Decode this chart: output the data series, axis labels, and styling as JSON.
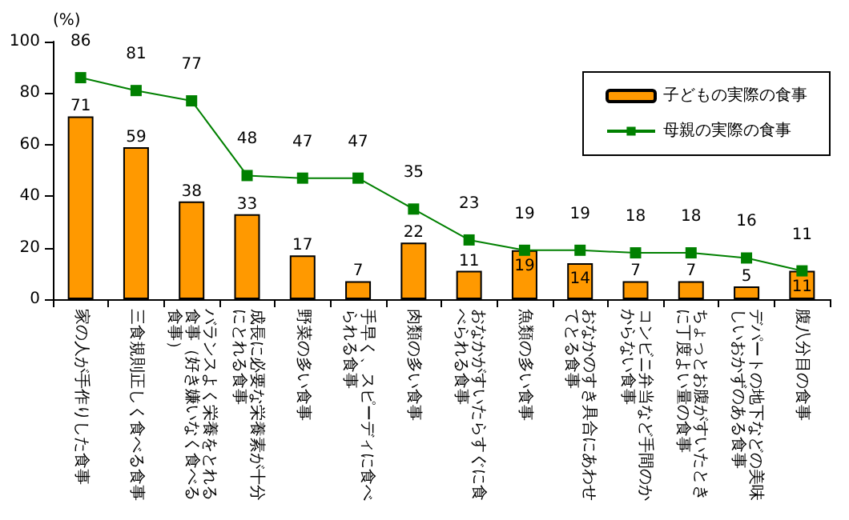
{
  "chart_data": {
    "type": "bar",
    "ylabel": "(%)",
    "categories": [
      "家の人が手作りした食事",
      "三食規則正しく食べる食事",
      "バランスよく栄養をとれる食事（好き嫌いなく食べる食事）",
      "成長に必要な栄養素が十分にとれる食事",
      "野菜の多い食事",
      "手早く、スピーディに食べられる食事",
      "肉類の多い食事",
      "おなかがすいたらすぐに食べられる食事",
      "魚類の多い食事",
      "おなかのすき具合にあわせてとる食事",
      "コンビニ弁当など手間のかからない食事",
      "ちょっとお腹がすいたときに丁度よい量の食事",
      "デパートの地下などの美味しいおかずのある食事",
      "腹八分目の食事"
    ],
    "series": [
      {
        "name": "子どもの実際の食事",
        "type": "bar",
        "color": "#ff9900",
        "values": [
          71,
          59,
          38,
          33,
          17,
          7,
          22,
          11,
          19,
          14,
          7,
          7,
          5,
          11
        ]
      },
      {
        "name": "母親の実際の食事",
        "type": "line",
        "color": "#008000",
        "values": [
          86,
          81,
          77,
          48,
          47,
          47,
          35,
          23,
          19,
          19,
          18,
          18,
          16,
          11
        ]
      }
    ],
    "ylim": [
      0,
      100
    ],
    "yticks": [
      0,
      20,
      40,
      60,
      80,
      100
    ],
    "grid": false,
    "legend": "top right",
    "marker": "square",
    "data_labels": true
  }
}
